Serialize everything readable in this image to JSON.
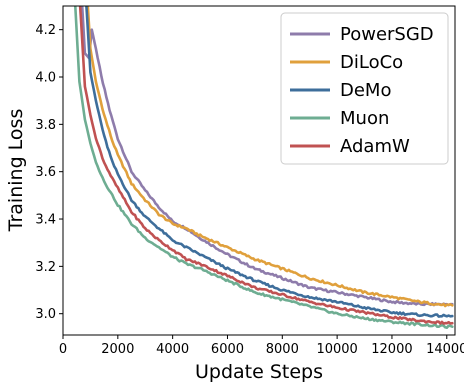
{
  "chart_data": {
    "type": "line",
    "xlabel": "Update Steps",
    "ylabel": "Training Loss",
    "xlim": [
      0,
      14300
    ],
    "ylim": [
      2.91,
      4.3
    ],
    "xticks": [
      0,
      2000,
      4000,
      6000,
      8000,
      10000,
      12000,
      14000
    ],
    "yticks": [
      3.0,
      3.2,
      3.4,
      3.6,
      3.8,
      4.0,
      4.2
    ],
    "xtick_labels": [
      "0",
      "2000",
      "4000",
      "6000",
      "8000",
      "10000",
      "12000",
      "14000"
    ],
    "ytick_labels": [
      "3.0",
      "3.2",
      "3.4",
      "3.6",
      "3.8",
      "4.0",
      "4.2"
    ],
    "grid": false,
    "legend_position": "top-right",
    "series": [
      {
        "name": "PowerSGD",
        "color": "#8e7cab",
        "x": [
          600,
          800,
          950,
          1050,
          1200,
          1400,
          1700,
          2000,
          2500,
          3000,
          3500,
          4000,
          4500,
          5000,
          6000,
          7000,
          8000,
          9000,
          10000,
          11000,
          12000,
          13000,
          14000,
          14200
        ],
        "y": [
          4.5,
          4.1,
          4.08,
          4.2,
          4.12,
          4.0,
          3.86,
          3.74,
          3.6,
          3.52,
          3.45,
          3.39,
          3.36,
          3.32,
          3.25,
          3.19,
          3.15,
          3.11,
          3.09,
          3.07,
          3.05,
          3.04,
          3.04,
          3.04
        ]
      },
      {
        "name": "DiLoCo",
        "color": "#e0a03c",
        "x": [
          800,
          1000,
          1200,
          1500,
          1800,
          2000,
          2500,
          3000,
          3500,
          4000,
          4500,
          5000,
          6000,
          7000,
          8000,
          9000,
          10000,
          11000,
          12000,
          13000,
          14000,
          14200
        ],
        "y": [
          4.5,
          4.12,
          3.98,
          3.84,
          3.73,
          3.67,
          3.55,
          3.48,
          3.42,
          3.38,
          3.36,
          3.33,
          3.28,
          3.23,
          3.19,
          3.15,
          3.12,
          3.09,
          3.07,
          3.05,
          3.035,
          3.035
        ]
      },
      {
        "name": "DeMo",
        "color": "#3e6e9b",
        "x": [
          800,
          1000,
          1200,
          1500,
          1800,
          2000,
          2500,
          3000,
          3500,
          4000,
          4500,
          5000,
          6000,
          7000,
          8000,
          9000,
          10000,
          11000,
          12000,
          13000,
          14000,
          14200
        ],
        "y": [
          4.4,
          4.02,
          3.9,
          3.75,
          3.64,
          3.59,
          3.48,
          3.41,
          3.36,
          3.31,
          3.28,
          3.25,
          3.19,
          3.14,
          3.1,
          3.07,
          3.05,
          3.025,
          3.005,
          2.995,
          2.99,
          2.99
        ]
      },
      {
        "name": "Muon",
        "color": "#6ead92",
        "x": [
          400,
          600,
          800,
          1000,
          1200,
          1500,
          1800,
          2000,
          2500,
          3000,
          3500,
          4000,
          4500,
          5000,
          6000,
          7000,
          8000,
          9000,
          10000,
          11000,
          12000,
          13000,
          14000,
          14200
        ],
        "y": [
          4.4,
          3.98,
          3.82,
          3.72,
          3.64,
          3.56,
          3.5,
          3.46,
          3.38,
          3.32,
          3.28,
          3.24,
          3.21,
          3.19,
          3.14,
          3.09,
          3.06,
          3.03,
          3.0,
          2.98,
          2.965,
          2.955,
          2.945,
          2.945
        ]
      },
      {
        "name": "AdamW",
        "color": "#c05252",
        "x": [
          600,
          800,
          1000,
          1200,
          1500,
          1800,
          2000,
          2500,
          3000,
          3500,
          4000,
          4500,
          5000,
          6000,
          7000,
          8000,
          9000,
          10000,
          11000,
          12000,
          13000,
          14000,
          14200
        ],
        "y": [
          4.35,
          3.96,
          3.84,
          3.74,
          3.64,
          3.57,
          3.53,
          3.43,
          3.36,
          3.31,
          3.27,
          3.23,
          3.21,
          3.16,
          3.11,
          3.08,
          3.05,
          3.025,
          3.005,
          2.985,
          2.97,
          2.96,
          2.96
        ]
      }
    ]
  }
}
